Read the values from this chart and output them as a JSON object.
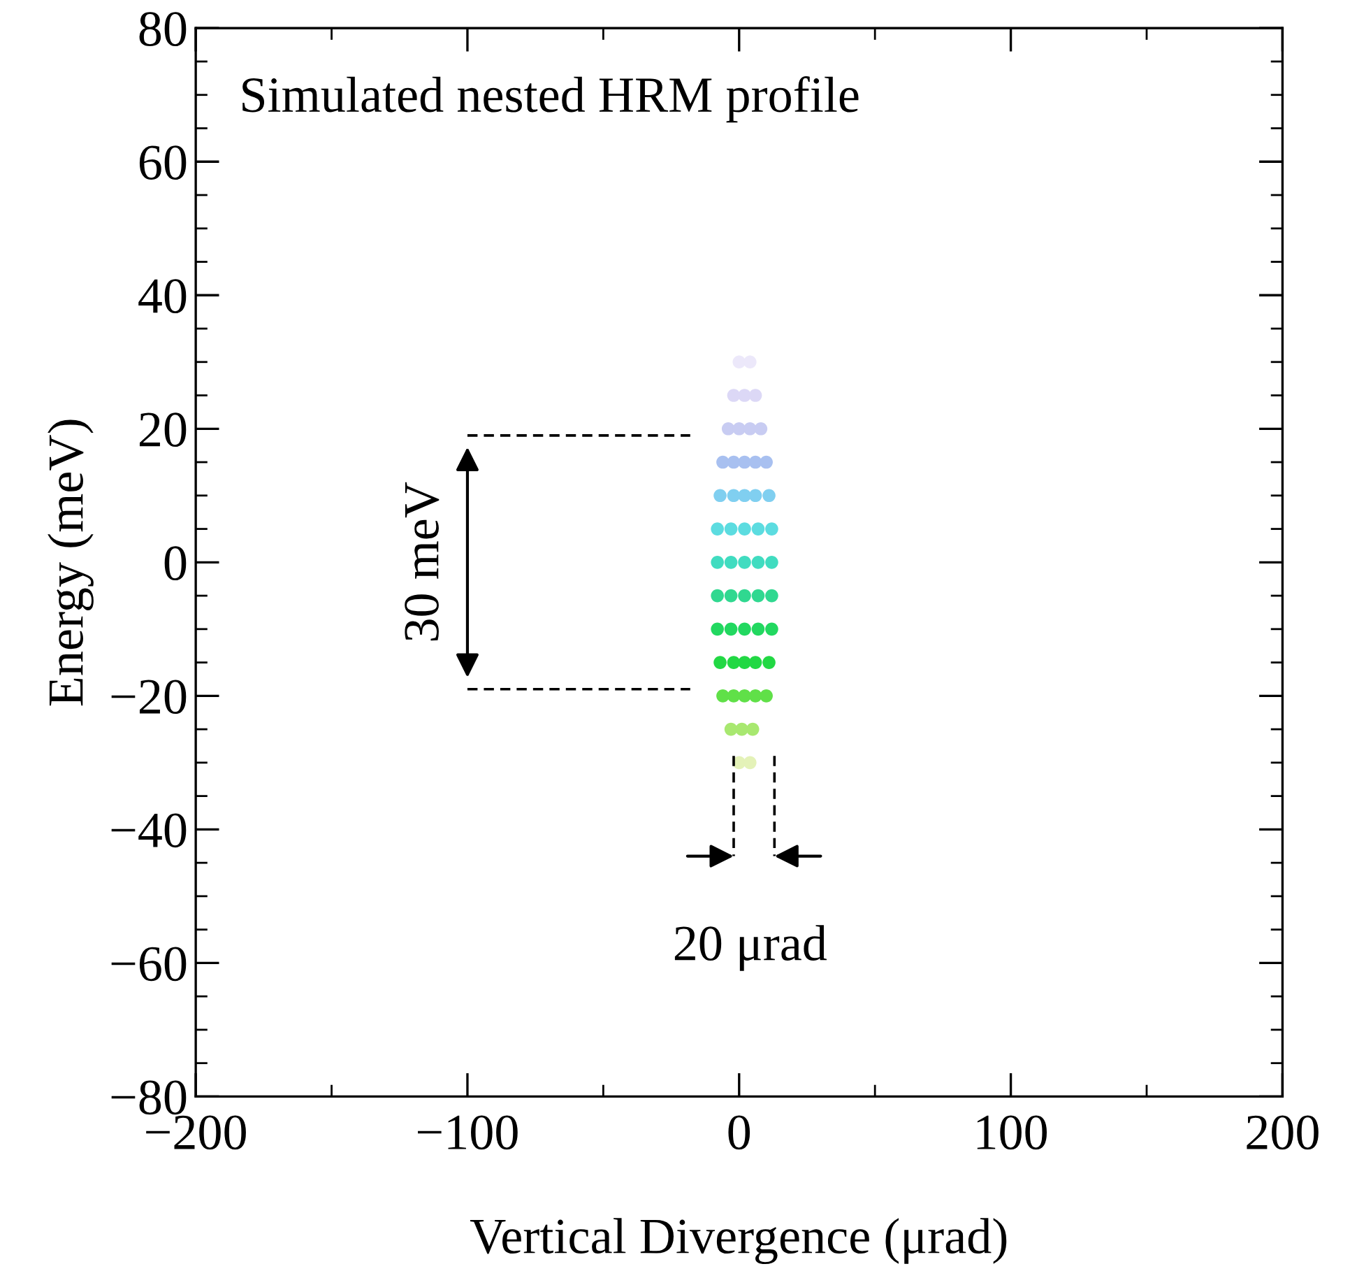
{
  "chart_data": {
    "type": "scatter",
    "title": "Simulated nested HRM profile",
    "xlabel": "Vertical Divergence (μrad)",
    "ylabel": "Energy (meV)",
    "xlim": [
      -200,
      200
    ],
    "ylim": [
      -80,
      80
    ],
    "xticks": [
      -200,
      {
        "value": -150,
        "label": null
      },
      -100,
      {
        "value": -50,
        "label": null
      },
      0,
      {
        "value": 50,
        "label": null
      },
      100,
      {
        "value": 150,
        "label": null
      },
      200
    ],
    "yticks": [
      -80,
      {
        "value": -75,
        "label": null
      },
      {
        "value": -70,
        "label": null
      },
      {
        "value": -65,
        "label": null
      },
      -60,
      {
        "value": -55,
        "label": null
      },
      {
        "value": -50,
        "label": null
      },
      {
        "value": -45,
        "label": null
      },
      -40,
      {
        "value": -35,
        "label": null
      },
      {
        "value": -30,
        "label": null
      },
      {
        "value": -25,
        "label": null
      },
      -20,
      {
        "value": -15,
        "label": null
      },
      {
        "value": -10,
        "label": null
      },
      {
        "value": -5,
        "label": null
      },
      0,
      {
        "value": 5,
        "label": null
      },
      {
        "value": 10,
        "label": null
      },
      {
        "value": 15,
        "label": null
      },
      20,
      {
        "value": 25,
        "label": null
      },
      {
        "value": 30,
        "label": null
      },
      {
        "value": 35,
        "label": null
      },
      40,
      {
        "value": 45,
        "label": null
      },
      {
        "value": 50,
        "label": null
      },
      {
        "value": 55,
        "label": null
      },
      60,
      {
        "value": 65,
        "label": null
      },
      {
        "value": 70,
        "label": null
      },
      {
        "value": 75,
        "label": null
      },
      80
    ],
    "grid": false,
    "series": [
      {
        "marker": "circle",
        "x": [
          0,
          4,
          -2,
          2,
          6,
          -4,
          0,
          4,
          8,
          -6,
          -2,
          2,
          6,
          10,
          -7,
          -2,
          2,
          6,
          11,
          -8,
          -3,
          2,
          7,
          12,
          -8,
          -3,
          2,
          7,
          12,
          -8,
          -3,
          2,
          7,
          12,
          -8,
          -3,
          2,
          7,
          12,
          -7,
          -2,
          2,
          6,
          11,
          -6,
          -2,
          2,
          6,
          10,
          -3,
          1,
          5,
          0,
          4
        ],
        "values": [
          30,
          30,
          25,
          25,
          25,
          20,
          20,
          20,
          20,
          15,
          15,
          15,
          15,
          15,
          10,
          10,
          10,
          10,
          10,
          5,
          5,
          5,
          5,
          5,
          0,
          0,
          0,
          0,
          0,
          -5,
          -5,
          -5,
          -5,
          -5,
          -10,
          -10,
          -10,
          -10,
          -10,
          -15,
          -15,
          -15,
          -15,
          -15,
          -20,
          -20,
          -20,
          -20,
          -20,
          -25,
          -25,
          -25,
          -30,
          -30
        ],
        "colors": [
          "#ece8fa",
          "#ece8fa",
          "#dcd8f6",
          "#dcd8f6",
          "#dcd8f6",
          "#c8ccf2",
          "#c8ccf2",
          "#c8ccf2",
          "#c8ccf2",
          "#a8c0f0",
          "#a8c0f0",
          "#a8c0f0",
          "#a8c0f0",
          "#a8c0f0",
          "#80cff0",
          "#80cff0",
          "#80cff0",
          "#80cff0",
          "#80cff0",
          "#5cdce0",
          "#5cdce0",
          "#5cdce0",
          "#5cdce0",
          "#5cdce0",
          "#40dcc0",
          "#40dcc0",
          "#40dcc0",
          "#40dcc0",
          "#40dcc0",
          "#30d890",
          "#30d890",
          "#30d890",
          "#30d890",
          "#30d890",
          "#22d860",
          "#22d860",
          "#22d860",
          "#22d860",
          "#22d860",
          "#22d844",
          "#22d844",
          "#22d844",
          "#22d844",
          "#22d844",
          "#60e048",
          "#60e048",
          "#60e048",
          "#60e048",
          "#60e048",
          "#a8e870",
          "#a8e870",
          "#a8e870",
          "#e4f2b8",
          "#e4f2b8"
        ]
      },
      {
        "type": "line",
        "color": "#000000",
        "line_style": "dashed",
        "x": [
          -100,
          -18
        ],
        "values": [
          19,
          19
        ]
      },
      {
        "type": "line",
        "color": "#000000",
        "line_style": "dashed",
        "x": [
          -100,
          -18
        ],
        "values": [
          -19,
          -19
        ]
      },
      {
        "type": "line",
        "color": "#000000",
        "line_style": "dashed",
        "x": [
          -2,
          -2
        ],
        "values": [
          -29,
          -44
        ]
      },
      {
        "type": "line",
        "color": "#000000",
        "line_style": "dashed",
        "x": [
          13,
          13
        ],
        "values": [
          -29,
          -44
        ]
      }
    ],
    "annotations": [
      "30 meV",
      "20 μrad"
    ]
  }
}
